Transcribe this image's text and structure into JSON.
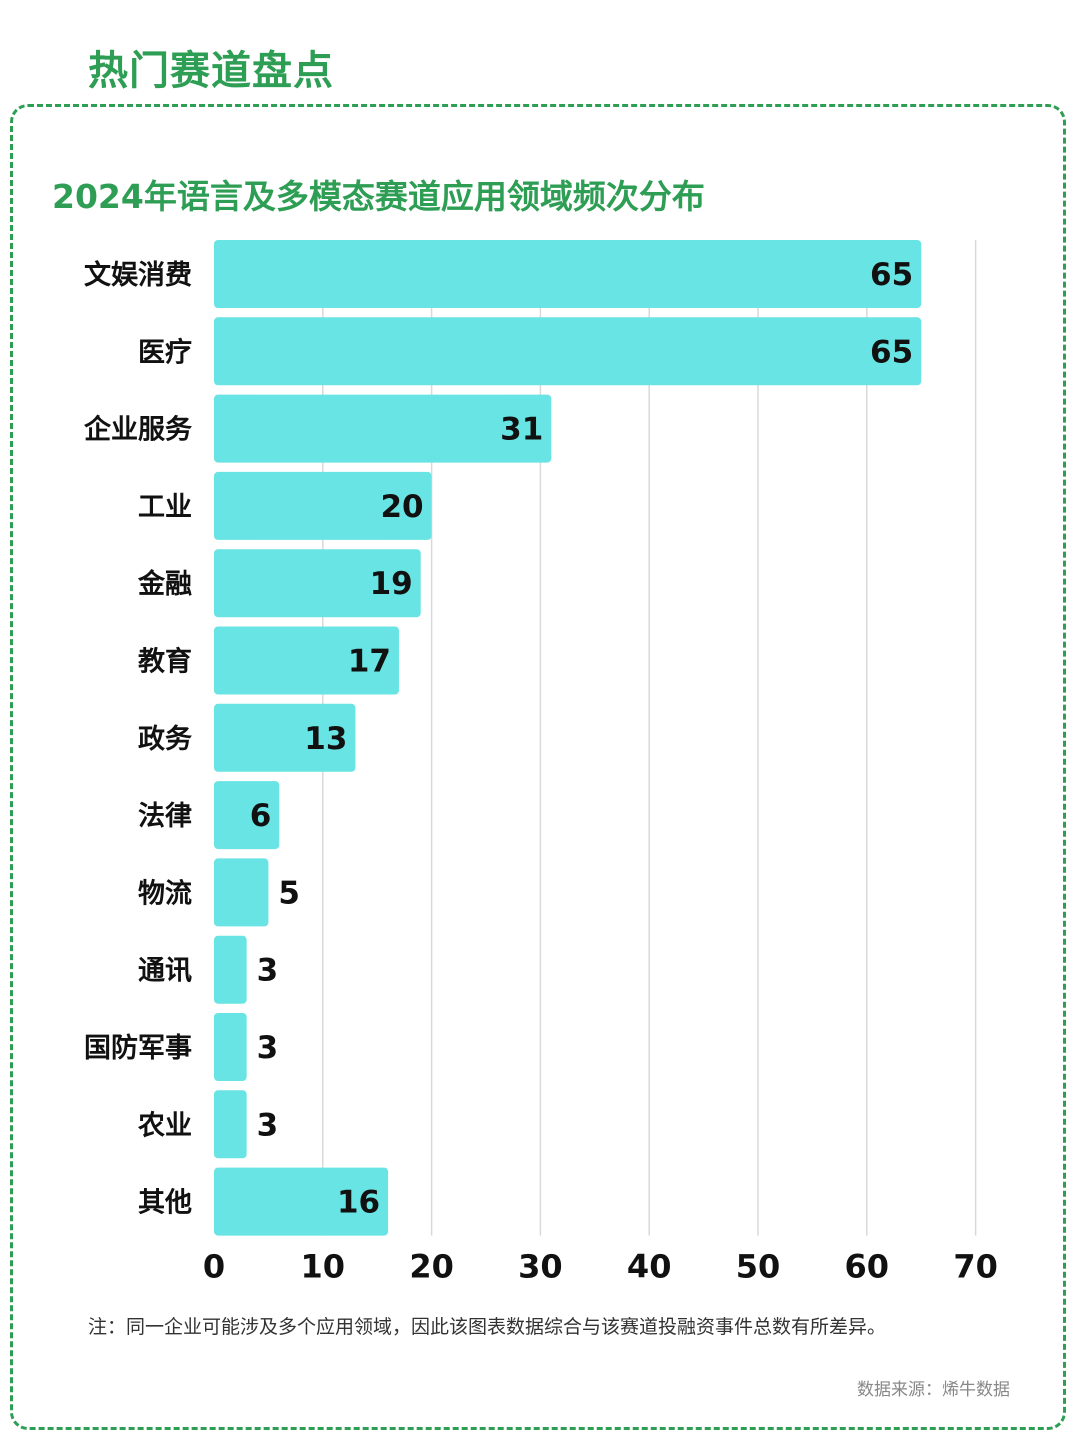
{
  "header": {
    "title": "热门赛道盘点"
  },
  "footer": {
    "note": "注：同一企业可能涉及多个应用领域，因此该图表数据综合与该赛道投融资事件总数有所差异。",
    "source": "数据来源：烯牛数据"
  },
  "colors": {
    "accent": "#2e9e55",
    "bar": "#68e4e4",
    "grid": "#d9d9d9"
  },
  "chart_data": {
    "type": "bar",
    "orientation": "horizontal",
    "title": "2024年语言及多模态赛道应用领域频次分布",
    "xlabel": "",
    "ylabel": "",
    "categories": [
      "文娱消费",
      "医疗",
      "企业服务",
      "工业",
      "金融",
      "教育",
      "政务",
      "法律",
      "物流",
      "通讯",
      "国防军事",
      "农业",
      "其他"
    ],
    "values": [
      65,
      65,
      31,
      20,
      19,
      17,
      13,
      6,
      5,
      3,
      3,
      3,
      16
    ],
    "xlim": [
      0,
      70
    ],
    "xticks": [
      0,
      10,
      20,
      30,
      40,
      50,
      60,
      70
    ],
    "grid": "vertical",
    "data_labels": true,
    "legend": "none"
  }
}
